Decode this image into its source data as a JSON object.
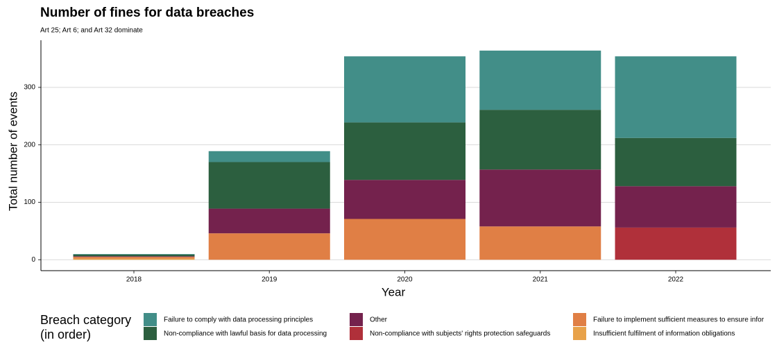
{
  "chart_data": {
    "type": "stacked_bar",
    "title": "Number of fines for data breaches",
    "subtitle": "Art 25; Art 6; and Art 32 dominate",
    "x_label": "Year",
    "y_label": "Total number of events",
    "legend_title": "Breach category\n(in order)",
    "categories": [
      "2018",
      "2019",
      "2020",
      "2021",
      "2022"
    ],
    "series": [
      {
        "name": "Insufficient fulfilment of information obligations",
        "color": "#E8A24A",
        "values": [
          2,
          0,
          0,
          0,
          0
        ]
      },
      {
        "name": "Failure to implement sufficient measures to ensure infor",
        "color": "#E07F45",
        "values": [
          3,
          46,
          71,
          58,
          0
        ]
      },
      {
        "name": "Non-compliance with subjects' rights protection safeguards",
        "color": "#B0303A",
        "values": [
          0,
          0,
          0,
          0,
          56
        ]
      },
      {
        "name": "Other",
        "color": "#74224D",
        "values": [
          1,
          43,
          68,
          99,
          72
        ]
      },
      {
        "name": "Non-compliance with lawful basis for data processing",
        "color": "#2C5F3F",
        "values": [
          3,
          81,
          100,
          104,
          84
        ]
      },
      {
        "name": "Failure to comply with data processing principles",
        "color": "#428E88",
        "values": [
          1,
          19,
          115,
          103,
          142
        ]
      }
    ],
    "ylim": [
      -19,
      382
    ],
    "yticks": [
      0,
      100,
      200,
      300
    ],
    "grid": true
  }
}
